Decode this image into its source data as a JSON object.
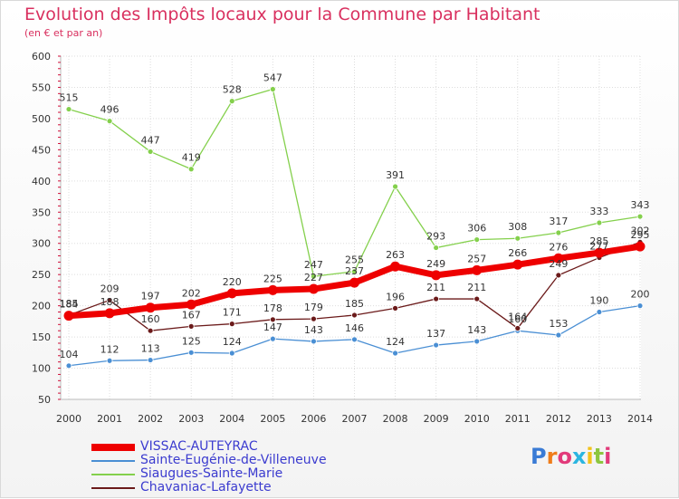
{
  "header": {
    "title": "Evolution des Impôts locaux pour la Commune par Habitant",
    "subtitle": "(en € et par an)"
  },
  "chart_data": {
    "type": "line",
    "title": "Evolution des Impôts locaux pour la Commune par Habitant",
    "subtitle": "(en € et par an)",
    "xlabel": "",
    "ylabel": "",
    "categories": [
      "2000",
      "2001",
      "2002",
      "2003",
      "2004",
      "2005",
      "2006",
      "2007",
      "2008",
      "2009",
      "2010",
      "2011",
      "2012",
      "2013",
      "2014"
    ],
    "ylim": [
      50,
      600
    ],
    "yticks": [
      50,
      100,
      150,
      200,
      250,
      300,
      350,
      400,
      450,
      500,
      550,
      600
    ],
    "grid": true,
    "legend_position": "bottom-left",
    "series": [
      {
        "name": "VISSAC-AUTEYRAC",
        "color": "#ee0000",
        "values": [
          184,
          188,
          197,
          202,
          220,
          225,
          227,
          237,
          263,
          249,
          257,
          266,
          276,
          285,
          295
        ],
        "labels": [
          "184",
          "188",
          "197",
          "202",
          "220",
          "225",
          "227",
          "237",
          "263",
          "249",
          "257",
          "266",
          "276",
          "285",
          "295"
        ]
      },
      {
        "name": "Sainte-Eugénie-de-Villeneuve",
        "color": "#4a8fd4",
        "values": [
          104,
          112,
          113,
          125,
          124,
          147,
          143,
          146,
          124,
          137,
          143,
          160,
          153,
          190,
          200
        ],
        "labels": [
          "104",
          "112",
          "113",
          "125",
          "124",
          "147",
          "143",
          "146",
          "124",
          "137",
          "143",
          "160",
          "153",
          "190",
          "200"
        ]
      },
      {
        "name": "Siaugues-Sainte-Marie",
        "color": "#84d04c",
        "values": [
          515,
          496,
          447,
          419,
          528,
          547,
          247,
          255,
          391,
          293,
          306,
          308,
          317,
          333,
          343
        ],
        "labels": [
          "515",
          "496",
          "447",
          "419",
          "528",
          "547",
          "247",
          "255",
          "391",
          "293",
          "306",
          "308",
          "317",
          "333",
          "343"
        ]
      },
      {
        "name": "Chavaniac-Lafayette",
        "color": "#6b1a1a",
        "values": [
          185,
          209,
          160,
          167,
          171,
          178,
          179,
          185,
          196,
          211,
          211,
          164,
          249,
          277,
          302
        ],
        "labels": [
          "185",
          "209",
          "160",
          "167",
          "171",
          "178",
          "179",
          "185",
          "196",
          "211",
          "211",
          "164",
          "249",
          "277",
          "302"
        ]
      }
    ]
  },
  "logo": {
    "letters": [
      {
        "ch": "P",
        "color": "#3a7bd5"
      },
      {
        "ch": "r",
        "color": "#ef7d1a"
      },
      {
        "ch": "o",
        "color": "#e23a7a"
      },
      {
        "ch": "x",
        "color": "#2bb5e0"
      },
      {
        "ch": "i",
        "color": "#f2c21a"
      },
      {
        "ch": "t",
        "color": "#8cc63f"
      },
      {
        "ch": "i",
        "color": "#e23a7a"
      }
    ]
  }
}
